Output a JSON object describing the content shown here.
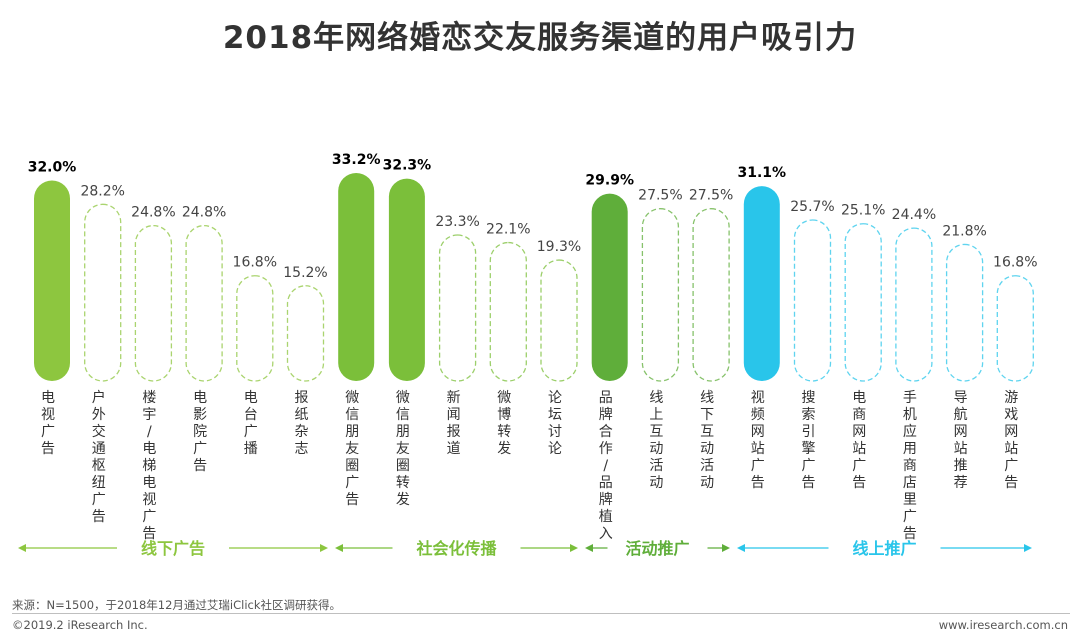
{
  "title": "2018年网络婚恋交友服务渠道的用户吸引力",
  "note": "来源：N=1500，于2018年12月通过艾瑞iClick社区调研获得。",
  "copyright": "©2019.2 iResearch Inc.",
  "website": "www.iresearch.com.cn",
  "colors": {
    "offline_ads": "#8dc63f",
    "social_spread": "#7bbf3a",
    "activity_promo": "#5fae3a",
    "online_promo": "#29c5ea"
  },
  "chart_data": {
    "type": "bar",
    "categories": [
      "电视广告",
      "户外交通枢纽广告",
      "楼宇/电梯电视广告",
      "电影院广告",
      "电台广播",
      "报纸杂志",
      "微信朋友圈广告",
      "微信朋友圈转发",
      "新闻报道",
      "微博转发",
      "论坛讨论",
      "品牌合作/品牌植入",
      "线上互动活动",
      "线下互动活动",
      "视频网站广告",
      "搜索引擎广告",
      "电商网站广告",
      "手机应用商店里广告",
      "导航网站推荐",
      "游戏网站广告"
    ],
    "values": [
      32.0,
      28.2,
      24.8,
      24.8,
      16.8,
      15.2,
      33.2,
      32.3,
      23.3,
      22.1,
      19.3,
      29.9,
      27.5,
      27.5,
      31.1,
      25.7,
      25.1,
      24.4,
      21.8,
      16.8
    ],
    "value_labels": [
      "32.0%",
      "28.2%",
      "24.8%",
      "24.8%",
      "16.8%",
      "15.2%",
      "33.2%",
      "32.3%",
      "23.3%",
      "22.1%",
      "19.3%",
      "29.9%",
      "27.5%",
      "27.5%",
      "31.1%",
      "25.7%",
      "25.1%",
      "24.4%",
      "21.8%",
      "16.8%"
    ],
    "highlighted": [
      true,
      false,
      false,
      false,
      false,
      false,
      true,
      true,
      false,
      false,
      false,
      true,
      false,
      false,
      true,
      false,
      false,
      false,
      false,
      false
    ],
    "groups": [
      {
        "name": "线下广告",
        "start": 0,
        "count": 6
      },
      {
        "name": "社会化传播",
        "start": 6,
        "count": 5
      },
      {
        "name": "活动推广",
        "start": 11,
        "count": 3
      },
      {
        "name": "线上推广",
        "start": 14,
        "count": 6
      }
    ],
    "unit": "%",
    "legend": "none",
    "grid": false
  }
}
